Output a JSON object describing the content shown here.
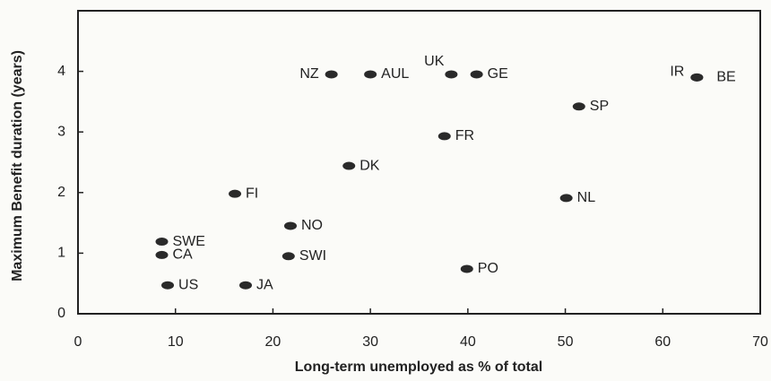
{
  "chart_data": {
    "type": "scatter",
    "x_label": "Long-term unemployed as % of total",
    "y_label": "Maximum Benefit duration (years)",
    "xlim": [
      0,
      70
    ],
    "xticks": [
      0,
      10,
      20,
      30,
      40,
      50,
      60,
      70
    ],
    "ylim": [
      0,
      5
    ],
    "yticks": [
      0,
      1,
      2,
      3,
      4
    ],
    "color": "#2a2a2a",
    "points": [
      {
        "label": "NZ",
        "x": 26,
        "y": 3.95
      },
      {
        "label": "AUL",
        "x": 30,
        "y": 3.95
      },
      {
        "label": "UK",
        "x": 38.3,
        "y": 3.95
      },
      {
        "label": "GE",
        "x": 40.9,
        "y": 3.95
      },
      {
        "label": "IR",
        "x": 63.5,
        "y": 3.9
      },
      {
        "label": "BE",
        "x": 63.5,
        "y": 3.9
      },
      {
        "label": "SP",
        "x": 51.4,
        "y": 3.42
      },
      {
        "label": "FR",
        "x": 37.6,
        "y": 2.93
      },
      {
        "label": "DK",
        "x": 27.8,
        "y": 2.44
      },
      {
        "label": "FI",
        "x": 16.1,
        "y": 1.98
      },
      {
        "label": "NL",
        "x": 50.1,
        "y": 1.91
      },
      {
        "label": "NO",
        "x": 21.8,
        "y": 1.45
      },
      {
        "label": "SWE",
        "x": 8.6,
        "y": 1.19
      },
      {
        "label": "CA",
        "x": 8.6,
        "y": 0.97
      },
      {
        "label": "SWI",
        "x": 21.6,
        "y": 0.95
      },
      {
        "label": "PO",
        "x": 39.9,
        "y": 0.74
      },
      {
        "label": "US",
        "x": 9.2,
        "y": 0.47
      },
      {
        "label": "JA",
        "x": 17.2,
        "y": 0.47
      }
    ]
  }
}
